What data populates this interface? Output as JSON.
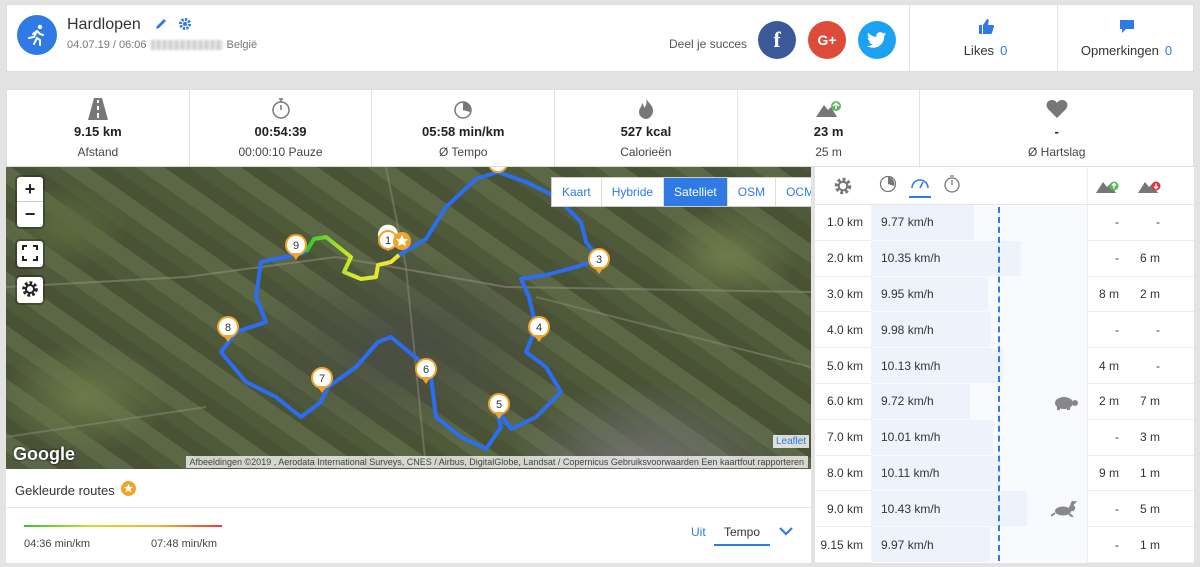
{
  "header": {
    "title": "Hardlopen",
    "datetime": "04.07.19 / 06:06",
    "location": "België",
    "share_label": "Deel je succes",
    "likes_label": "Likes",
    "likes_count": "0",
    "comments_label": "Opmerkingen",
    "comments_count": "0",
    "social": [
      "facebook",
      "google-plus",
      "twitter"
    ]
  },
  "stats": [
    {
      "icon": "road-icon",
      "value": "9.15 km",
      "label": "Afstand"
    },
    {
      "icon": "stopwatch-icon",
      "value": "00:54:39",
      "label": "00:00:10 Pauze"
    },
    {
      "icon": "pace-icon",
      "value": "05:58 min/km",
      "label": "Ø Tempo"
    },
    {
      "icon": "flame-icon",
      "value": "527 kcal",
      "label": "Calorieën"
    },
    {
      "icon": "mountain-up-icon",
      "value": "23 m",
      "label": "25 m"
    },
    {
      "icon": "heart-icon",
      "value": "-",
      "label": "Ø Hartslag"
    }
  ],
  "map": {
    "zoom_in": "+",
    "zoom_out": "−",
    "layers": [
      "Kaart",
      "Hybride",
      "Satelliet",
      "OSM",
      "OCM"
    ],
    "active_layer": "Satelliet",
    "markers": [
      "1",
      "3",
      "4",
      "5",
      "6",
      "7",
      "8",
      "9"
    ],
    "google": "Google",
    "leaflet": "Leaflet",
    "attribution": "Afbeeldingen ©2019 , Aerodata International Surveys, CNES / Airbus, DigitalGlobe, Landsat / Copernicus    Gebruiksvoorwaarden    Een kaartfout rapporteren"
  },
  "legend": {
    "title": "Gekleurde routes",
    "min": "04:36 min/km",
    "max": "07:48 min/km",
    "off": "Uit",
    "mode": "Tempo"
  },
  "splits": [
    {
      "km": "1.0 km",
      "speed": "9.77 km/h",
      "speed_value": 9.77,
      "up": "-",
      "down": "-",
      "marker": ""
    },
    {
      "km": "2.0 km",
      "speed": "10.35 km/h",
      "speed_value": 10.35,
      "up": "-",
      "down": "6 m",
      "marker": ""
    },
    {
      "km": "3.0 km",
      "speed": "9.95 km/h",
      "speed_value": 9.95,
      "up": "8 m",
      "down": "2 m",
      "marker": ""
    },
    {
      "km": "4.0 km",
      "speed": "9.98 km/h",
      "speed_value": 9.98,
      "up": "-",
      "down": "-",
      "marker": ""
    },
    {
      "km": "5.0 km",
      "speed": "10.13 km/h",
      "speed_value": 10.13,
      "up": "4 m",
      "down": "-",
      "marker": ""
    },
    {
      "km": "6.0 km",
      "speed": "9.72 km/h",
      "speed_value": 9.72,
      "up": "2 m",
      "down": "7 m",
      "marker": "turtle-icon"
    },
    {
      "km": "7.0 km",
      "speed": "10.01 km/h",
      "speed_value": 10.01,
      "up": "-",
      "down": "3 m",
      "marker": ""
    },
    {
      "km": "8.0 km",
      "speed": "10.11 km/h",
      "speed_value": 10.11,
      "up": "9 m",
      "down": "1 m",
      "marker": ""
    },
    {
      "km": "9.0 km",
      "speed": "10.43 km/h",
      "speed_value": 10.43,
      "up": "-",
      "down": "5 m",
      "marker": "rabbit-icon"
    },
    {
      "km": "9.15 km",
      "speed": "9.97 km/h",
      "speed_value": 9.97,
      "up": "-",
      "down": "1 m",
      "marker": ""
    }
  ],
  "colors": {
    "accent": "#2f7ae5",
    "route": "#2b6ef2",
    "facebook": "#3b5998",
    "google": "#dd4b39",
    "twitter": "#1da1f2"
  }
}
